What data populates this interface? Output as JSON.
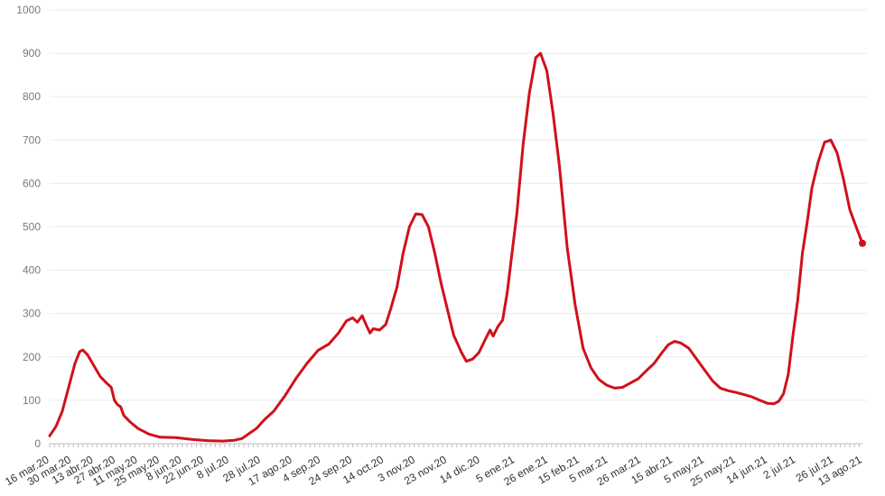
{
  "chart_data": {
    "type": "line",
    "title": "",
    "xlabel": "",
    "ylabel": "",
    "ylim": [
      0,
      1000
    ],
    "yticks": [
      0,
      100,
      200,
      300,
      400,
      500,
      600,
      700,
      800,
      900,
      1000
    ],
    "grid": true,
    "legend": "none",
    "colors": {
      "line": "#d0111b",
      "grid": "#ebebeb",
      "ytick": "#7a7a7a",
      "xtick": "#333333"
    },
    "xticks": [
      {
        "date": "2020-03-16",
        "label": "16 mar.20"
      },
      {
        "date": "2020-03-30",
        "label": "30 mar.20"
      },
      {
        "date": "2020-04-13",
        "label": "13 abr.20"
      },
      {
        "date": "2020-04-27",
        "label": "27 abr.20"
      },
      {
        "date": "2020-05-11",
        "label": "11 may.20"
      },
      {
        "date": "2020-05-25",
        "label": "25 may.20"
      },
      {
        "date": "2020-06-08",
        "label": "8 jun.20"
      },
      {
        "date": "2020-06-22",
        "label": "22 jun.20"
      },
      {
        "date": "2020-07-08",
        "label": "8 jul.20"
      },
      {
        "date": "2020-07-28",
        "label": "28 jul.20"
      },
      {
        "date": "2020-08-17",
        "label": "17 ago.20"
      },
      {
        "date": "2020-09-04",
        "label": "4 sep.20"
      },
      {
        "date": "2020-09-24",
        "label": "24 sep.20"
      },
      {
        "date": "2020-10-14",
        "label": "14 oct.20"
      },
      {
        "date": "2020-11-03",
        "label": "3 nov.20"
      },
      {
        "date": "2020-11-23",
        "label": "23 nov.20"
      },
      {
        "date": "2020-12-14",
        "label": "14 dic.20"
      },
      {
        "date": "2021-01-05",
        "label": "5 ene.21"
      },
      {
        "date": "2021-01-26",
        "label": "26 ene.21"
      },
      {
        "date": "2021-02-15",
        "label": "15 feb.21"
      },
      {
        "date": "2021-03-05",
        "label": "5 mar.21"
      },
      {
        "date": "2021-03-26",
        "label": "26 mar.21"
      },
      {
        "date": "2021-04-15",
        "label": "15 abr.21"
      },
      {
        "date": "2021-05-05",
        "label": "5 may.21"
      },
      {
        "date": "2021-05-25",
        "label": "25 may.21"
      },
      {
        "date": "2021-06-14",
        "label": "14 jun.21"
      },
      {
        "date": "2021-07-02",
        "label": "2 jul.21"
      },
      {
        "date": "2021-07-26",
        "label": "26 jul.21"
      },
      {
        "date": "2021-08-13",
        "label": "13 ago.21"
      }
    ],
    "series": [
      {
        "points": [
          [
            "2020-03-16",
            18
          ],
          [
            "2020-03-20",
            40
          ],
          [
            "2020-03-24",
            75
          ],
          [
            "2020-03-28",
            130
          ],
          [
            "2020-04-01",
            185
          ],
          [
            "2020-04-04",
            212
          ],
          [
            "2020-04-06",
            216
          ],
          [
            "2020-04-09",
            205
          ],
          [
            "2020-04-13",
            180
          ],
          [
            "2020-04-17",
            155
          ],
          [
            "2020-04-21",
            140
          ],
          [
            "2020-04-24",
            130
          ],
          [
            "2020-04-26",
            100
          ],
          [
            "2020-04-28",
            90
          ],
          [
            "2020-04-30",
            85
          ],
          [
            "2020-05-02",
            65
          ],
          [
            "2020-05-06",
            50
          ],
          [
            "2020-05-11",
            35
          ],
          [
            "2020-05-18",
            22
          ],
          [
            "2020-05-25",
            15
          ],
          [
            "2020-06-04",
            14
          ],
          [
            "2020-06-14",
            10
          ],
          [
            "2020-06-24",
            7
          ],
          [
            "2020-07-04",
            6
          ],
          [
            "2020-07-11",
            8
          ],
          [
            "2020-07-16",
            12
          ],
          [
            "2020-07-21",
            25
          ],
          [
            "2020-07-25",
            35
          ],
          [
            "2020-07-30",
            55
          ],
          [
            "2020-08-05",
            75
          ],
          [
            "2020-08-12",
            110
          ],
          [
            "2020-08-19",
            150
          ],
          [
            "2020-08-26",
            185
          ],
          [
            "2020-09-02",
            215
          ],
          [
            "2020-09-09",
            230
          ],
          [
            "2020-09-15",
            255
          ],
          [
            "2020-09-20",
            283
          ],
          [
            "2020-09-24",
            290
          ],
          [
            "2020-09-27",
            280
          ],
          [
            "2020-09-30",
            295
          ],
          [
            "2020-10-03",
            270
          ],
          [
            "2020-10-05",
            255
          ],
          [
            "2020-10-07",
            265
          ],
          [
            "2020-10-11",
            262
          ],
          [
            "2020-10-15",
            275
          ],
          [
            "2020-10-18",
            310
          ],
          [
            "2020-10-22",
            360
          ],
          [
            "2020-10-26",
            440
          ],
          [
            "2020-10-30",
            500
          ],
          [
            "2020-11-03",
            530
          ],
          [
            "2020-11-07",
            528
          ],
          [
            "2020-11-11",
            500
          ],
          [
            "2020-11-15",
            440
          ],
          [
            "2020-11-19",
            370
          ],
          [
            "2020-11-23",
            310
          ],
          [
            "2020-11-27",
            250
          ],
          [
            "2020-12-02",
            210
          ],
          [
            "2020-12-05",
            190
          ],
          [
            "2020-12-09",
            195
          ],
          [
            "2020-12-13",
            210
          ],
          [
            "2020-12-17",
            240
          ],
          [
            "2020-12-20",
            262
          ],
          [
            "2020-12-22",
            248
          ],
          [
            "2020-12-25",
            270
          ],
          [
            "2020-12-28",
            285
          ],
          [
            "2020-12-31",
            350
          ],
          [
            "2021-01-03",
            440
          ],
          [
            "2021-01-06",
            530
          ],
          [
            "2021-01-10",
            690
          ],
          [
            "2021-01-14",
            810
          ],
          [
            "2021-01-18",
            890
          ],
          [
            "2021-01-21",
            900
          ],
          [
            "2021-01-25",
            860
          ],
          [
            "2021-01-29",
            760
          ],
          [
            "2021-02-02",
            640
          ],
          [
            "2021-02-07",
            450
          ],
          [
            "2021-02-12",
            320
          ],
          [
            "2021-02-17",
            220
          ],
          [
            "2021-02-22",
            175
          ],
          [
            "2021-02-27",
            148
          ],
          [
            "2021-03-04",
            135
          ],
          [
            "2021-03-09",
            128
          ],
          [
            "2021-03-14",
            130
          ],
          [
            "2021-03-19",
            140
          ],
          [
            "2021-03-24",
            150
          ],
          [
            "2021-03-29",
            168
          ],
          [
            "2021-04-03",
            185
          ],
          [
            "2021-04-08",
            210
          ],
          [
            "2021-04-12",
            228
          ],
          [
            "2021-04-16",
            236
          ],
          [
            "2021-04-20",
            232
          ],
          [
            "2021-04-25",
            220
          ],
          [
            "2021-04-30",
            195
          ],
          [
            "2021-05-05",
            170
          ],
          [
            "2021-05-10",
            145
          ],
          [
            "2021-05-15",
            128
          ],
          [
            "2021-05-20",
            122
          ],
          [
            "2021-05-25",
            118
          ],
          [
            "2021-05-30",
            113
          ],
          [
            "2021-06-04",
            108
          ],
          [
            "2021-06-09",
            100
          ],
          [
            "2021-06-14",
            93
          ],
          [
            "2021-06-18",
            92
          ],
          [
            "2021-06-21",
            98
          ],
          [
            "2021-06-24",
            115
          ],
          [
            "2021-06-27",
            160
          ],
          [
            "2021-06-30",
            250
          ],
          [
            "2021-07-03",
            330
          ],
          [
            "2021-07-06",
            440
          ],
          [
            "2021-07-09",
            510
          ],
          [
            "2021-07-12",
            590
          ],
          [
            "2021-07-16",
            650
          ],
          [
            "2021-07-20",
            695
          ],
          [
            "2021-07-24",
            700
          ],
          [
            "2021-07-28",
            670
          ],
          [
            "2021-08-01",
            610
          ],
          [
            "2021-08-05",
            540
          ],
          [
            "2021-08-09",
            500
          ],
          [
            "2021-08-13",
            462
          ]
        ]
      }
    ]
  }
}
